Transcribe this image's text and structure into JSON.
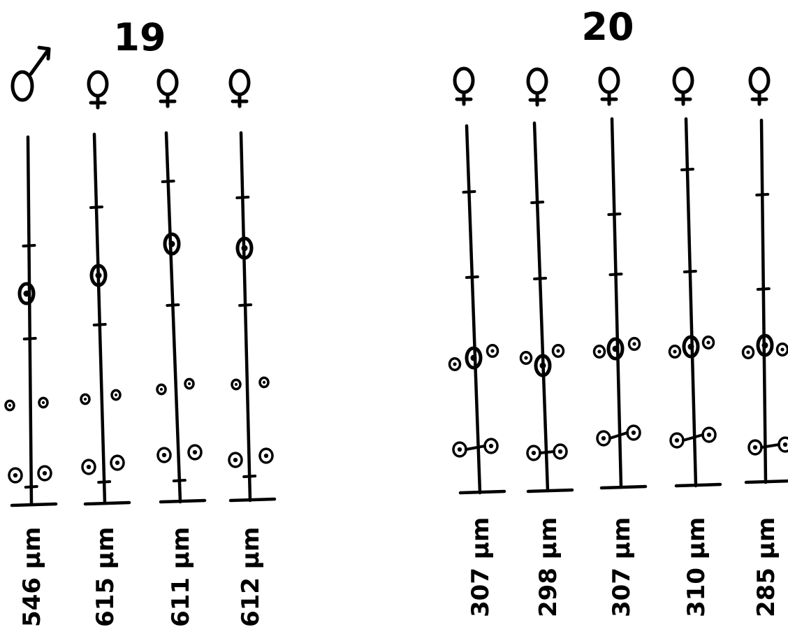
{
  "groups": [
    {
      "label": "19",
      "specimens": [
        {
          "sex": "male",
          "length": "546 µm"
        },
        {
          "sex": "female",
          "length": "615 µm"
        },
        {
          "sex": "female",
          "length": "611 µm"
        },
        {
          "sex": "female",
          "length": "612 µm"
        }
      ]
    },
    {
      "label": "20",
      "specimens": [
        {
          "sex": "female",
          "length": "307 µm"
        },
        {
          "sex": "female",
          "length": "298 µm"
        },
        {
          "sex": "female",
          "length": "307 µm"
        },
        {
          "sex": "female",
          "length": "310 µm"
        },
        {
          "sex": "female",
          "length": "285 µm"
        }
      ]
    }
  ]
}
